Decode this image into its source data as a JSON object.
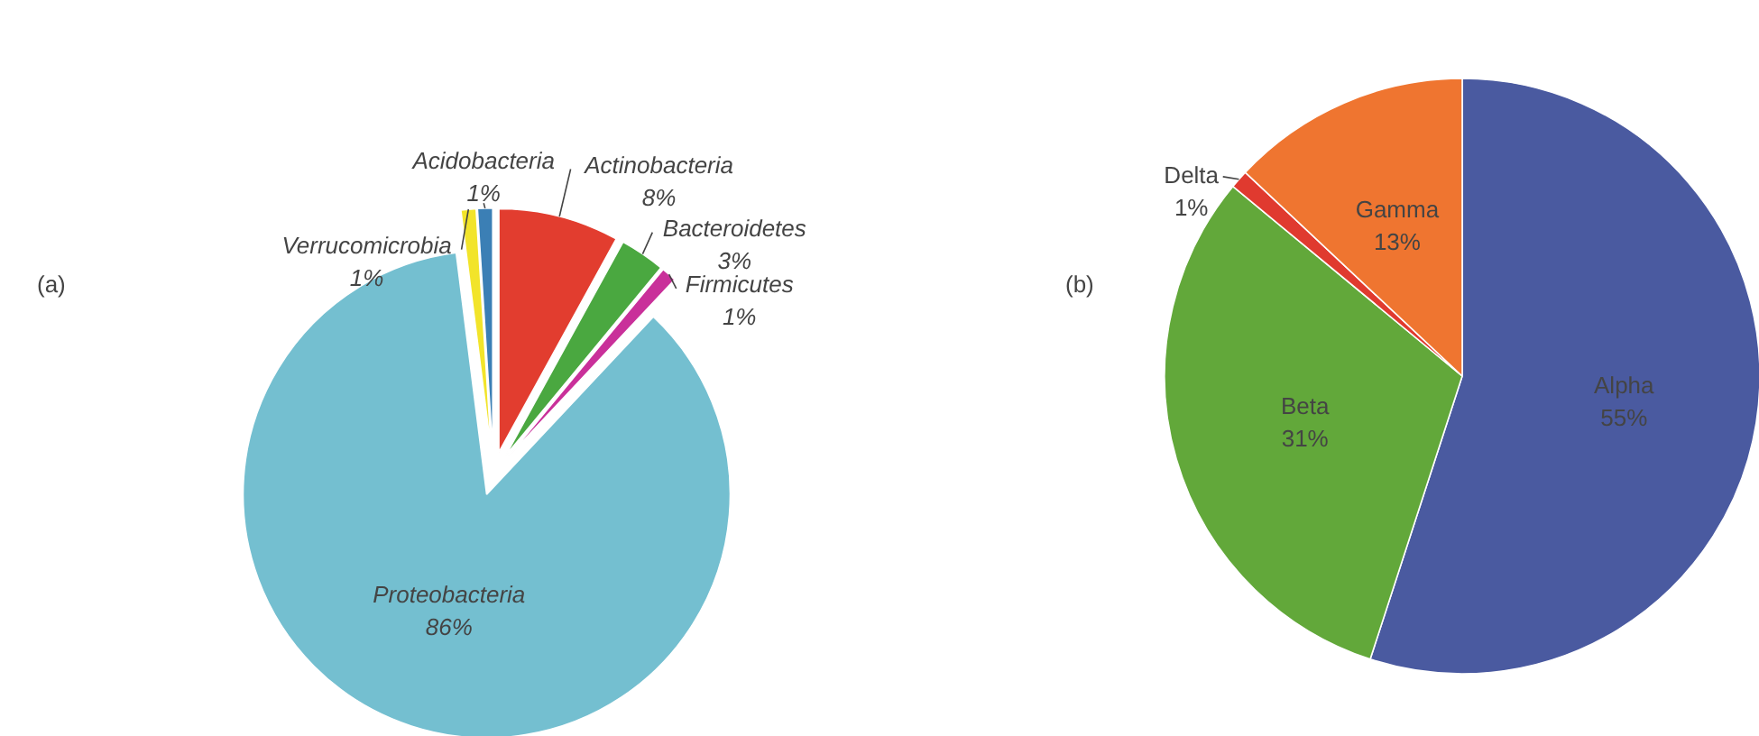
{
  "chart_data": [
    {
      "type": "pie",
      "title": "(a)",
      "categories": [
        "Actinobacteria",
        "Bacteroidetes",
        "Firmicutes",
        "Proteobacteria",
        "Verrucomicrobia",
        "Acidobacteria"
      ],
      "values": [
        8,
        3,
        1,
        86,
        1,
        1
      ],
      "value_labels": [
        "8%",
        "3%",
        "1%",
        "86%",
        "1%",
        "1%"
      ],
      "colors": [
        "#e23d2f",
        "#4aa840",
        "#c9309a",
        "#74bfd0",
        "#f2e42a",
        "#3b7fb5"
      ]
    },
    {
      "type": "pie",
      "title": "(b)",
      "categories": [
        "Alpha",
        "Beta",
        "Delta",
        "Gamma"
      ],
      "values": [
        55,
        31,
        1,
        13
      ],
      "value_labels": [
        "55%",
        "31%",
        "1%",
        "13%"
      ],
      "colors": [
        "#4a5aa0",
        "#62a83a",
        "#e03a2f",
        "#ef7530"
      ]
    }
  ]
}
